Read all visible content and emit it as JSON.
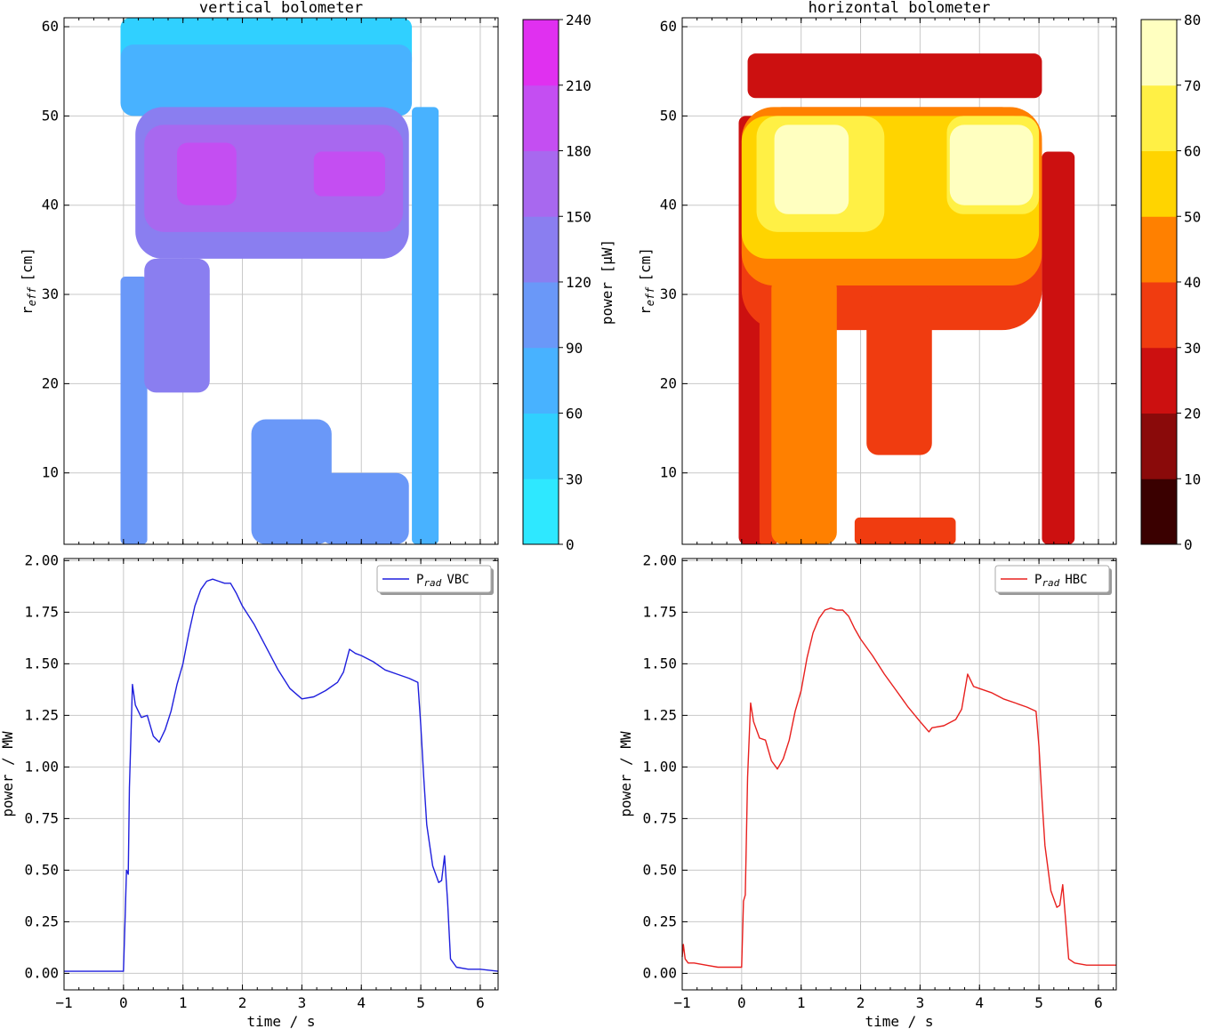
{
  "chart_data": [
    {
      "id": "tl",
      "type": "heatmap",
      "title": "vertical bolometer",
      "xlabel": "",
      "ylabel": "r_eff [cm]",
      "ylabel_main": "r",
      "ylabel_sub": "eff",
      "ylabel_unit": "[cm]",
      "xlim": [
        -1,
        6.3
      ],
      "ylim": [
        2,
        61
      ],
      "xticks": [
        -1,
        0,
        1,
        2,
        3,
        4,
        5,
        6
      ],
      "yticks": [
        10,
        20,
        30,
        40,
        50,
        60
      ],
      "grid": true,
      "colorbar": {
        "label": "power [µW]",
        "levels": [
          0,
          30,
          60,
          90,
          120,
          150,
          180,
          210,
          240
        ],
        "colors": [
          "#2ee8ff",
          "#30d0ff",
          "#48b2ff",
          "#6a98f8",
          "#8a7ef0",
          "#a868ef",
          "#c44ef2",
          "#e030f0"
        ]
      },
      "regions": [
        {
          "level": 30,
          "t0": -0.05,
          "t1": 4.85,
          "r0": 55,
          "r1": 61
        },
        {
          "level": 60,
          "t0": -0.05,
          "t1": 4.85,
          "r0": 50,
          "r1": 58
        },
        {
          "level": 60,
          "t0": 4.85,
          "t1": 5.3,
          "r0": 2,
          "r1": 51
        },
        {
          "level": 90,
          "t0": -0.05,
          "t1": 0.4,
          "r0": 2,
          "r1": 32
        },
        {
          "level": 90,
          "t0": 2.15,
          "t1": 3.5,
          "r0": 2,
          "r1": 16
        },
        {
          "level": 90,
          "t0": 3.3,
          "t1": 4.8,
          "r0": 2,
          "r1": 10
        },
        {
          "level": 120,
          "t0": 0.2,
          "t1": 4.8,
          "r0": 34,
          "r1": 51
        },
        {
          "level": 120,
          "t0": 0.35,
          "t1": 1.45,
          "r0": 19,
          "r1": 34
        },
        {
          "level": 150,
          "t0": 0.35,
          "t1": 4.7,
          "r0": 37,
          "r1": 49
        },
        {
          "level": 180,
          "t0": 0.9,
          "t1": 1.9,
          "r0": 40,
          "r1": 47
        },
        {
          "level": 180,
          "t0": 3.2,
          "t1": 4.4,
          "r0": 41,
          "r1": 46
        }
      ]
    },
    {
      "id": "tr",
      "type": "heatmap",
      "title": "horizontal bolometer",
      "xlabel": "",
      "ylabel": "r_eff [cm]",
      "ylabel_main": "r",
      "ylabel_sub": "eff",
      "ylabel_unit": "[cm]",
      "xlim": [
        -1,
        6.3
      ],
      "ylim": [
        2,
        61
      ],
      "xticks": [
        -1,
        0,
        1,
        2,
        3,
        4,
        5,
        6
      ],
      "yticks": [
        10,
        20,
        30,
        40,
        50,
        60
      ],
      "grid": true,
      "colorbar": {
        "label": "power [µW]",
        "levels": [
          0,
          10,
          20,
          30,
          40,
          50,
          60,
          70,
          80
        ],
        "colors": [
          "#3a0000",
          "#8a0a0a",
          "#cc1010",
          "#f03c10",
          "#ff8000",
          "#ffd400",
          "#fff045",
          "#ffffc0"
        ]
      },
      "regions": [
        {
          "level": 20,
          "t0": 0.1,
          "t1": 5.05,
          "r0": 52,
          "r1": 57
        },
        {
          "level": 20,
          "t0": -0.05,
          "t1": 0.6,
          "r0": 2,
          "r1": 50
        },
        {
          "level": 20,
          "t0": 5.05,
          "t1": 5.6,
          "r0": 2,
          "r1": 46
        },
        {
          "level": 30,
          "t0": 0.0,
          "t1": 5.05,
          "r0": 26,
          "r1": 51
        },
        {
          "level": 30,
          "t0": 0.3,
          "t1": 0.6,
          "r0": 2,
          "r1": 33
        },
        {
          "level": 30,
          "t0": 2.1,
          "t1": 3.2,
          "r0": 12,
          "r1": 30
        },
        {
          "level": 30,
          "t0": 1.9,
          "t1": 3.6,
          "r0": 2,
          "r1": 5
        },
        {
          "level": 40,
          "t0": 0.0,
          "t1": 5.05,
          "r0": 31,
          "r1": 51
        },
        {
          "level": 40,
          "t0": 0.5,
          "t1": 1.6,
          "r0": 2,
          "r1": 32
        },
        {
          "level": 50,
          "t0": 0.0,
          "t1": 5.0,
          "r0": 34,
          "r1": 50
        },
        {
          "level": 60,
          "t0": 0.25,
          "t1": 2.4,
          "r0": 37,
          "r1": 50
        },
        {
          "level": 60,
          "t0": 3.45,
          "t1": 5.0,
          "r0": 39,
          "r1": 50
        },
        {
          "level": 70,
          "t0": 0.55,
          "t1": 1.8,
          "r0": 39,
          "r1": 49
        },
        {
          "level": 70,
          "t0": 3.5,
          "t1": 4.9,
          "r0": 40,
          "r1": 49
        }
      ]
    },
    {
      "id": "bl",
      "type": "line",
      "title": "",
      "xlabel": "time / s",
      "ylabel": "power / MW",
      "xlim": [
        -1,
        6.3
      ],
      "ylim": [
        -0.08,
        2.01
      ],
      "xticks": [
        -1,
        0,
        1,
        2,
        3,
        4,
        5,
        6
      ],
      "yticks": [
        0.0,
        0.25,
        0.5,
        0.75,
        1.0,
        1.25,
        1.5,
        1.75,
        2.0
      ],
      "ytick_labels": [
        "0.00",
        "0.25",
        "0.50",
        "0.75",
        "1.00",
        "1.25",
        "1.50",
        "1.75",
        "2.00"
      ],
      "grid": true,
      "legend": "top-right",
      "series": [
        {
          "name": "P_rad VBC",
          "legend_main": "P",
          "legend_sub": "rad",
          "legend_rest": "VBC",
          "color": "#1f1fdd",
          "x": [
            -1,
            -0.5,
            0,
            0.03,
            0.05,
            0.08,
            0.1,
            0.15,
            0.2,
            0.3,
            0.4,
            0.5,
            0.6,
            0.7,
            0.8,
            0.9,
            1.0,
            1.1,
            1.2,
            1.3,
            1.4,
            1.5,
            1.6,
            1.7,
            1.8,
            1.9,
            2.0,
            2.2,
            2.4,
            2.6,
            2.8,
            3.0,
            3.2,
            3.4,
            3.6,
            3.7,
            3.8,
            3.9,
            4.0,
            4.2,
            4.4,
            4.6,
            4.8,
            4.95,
            5.0,
            5.05,
            5.1,
            5.2,
            5.3,
            5.35,
            5.4,
            5.45,
            5.5,
            5.6,
            5.8,
            6.0,
            6.3
          ],
          "y": [
            0.01,
            0.01,
            0.01,
            0.3,
            0.5,
            0.48,
            0.9,
            1.4,
            1.3,
            1.24,
            1.25,
            1.15,
            1.12,
            1.18,
            1.27,
            1.4,
            1.5,
            1.65,
            1.78,
            1.86,
            1.9,
            1.91,
            1.9,
            1.89,
            1.89,
            1.84,
            1.78,
            1.69,
            1.58,
            1.47,
            1.38,
            1.33,
            1.34,
            1.37,
            1.41,
            1.46,
            1.57,
            1.55,
            1.54,
            1.51,
            1.47,
            1.45,
            1.43,
            1.41,
            1.2,
            0.95,
            0.72,
            0.52,
            0.44,
            0.45,
            0.57,
            0.35,
            0.07,
            0.03,
            0.02,
            0.02,
            0.01
          ]
        }
      ]
    },
    {
      "id": "br",
      "type": "line",
      "title": "",
      "xlabel": "time / s",
      "ylabel": "power / MW",
      "xlim": [
        -1,
        6.3
      ],
      "ylim": [
        -0.08,
        2.01
      ],
      "xticks": [
        -1,
        0,
        1,
        2,
        3,
        4,
        5,
        6
      ],
      "yticks": [
        0.0,
        0.25,
        0.5,
        0.75,
        1.0,
        1.25,
        1.5,
        1.75,
        2.0
      ],
      "ytick_labels": [
        "0.00",
        "0.25",
        "0.50",
        "0.75",
        "1.00",
        "1.25",
        "1.50",
        "1.75",
        "2.00"
      ],
      "grid": true,
      "legend": "top-right",
      "series": [
        {
          "name": "P_rad HBC",
          "legend_main": "P",
          "legend_sub": "rad",
          "legend_rest": "HBC",
          "color": "#e8201e",
          "x": [
            -1,
            -0.98,
            -0.95,
            -0.9,
            -0.8,
            -0.6,
            -0.4,
            -0.2,
            -0.05,
            0.0,
            0.03,
            0.06,
            0.1,
            0.15,
            0.2,
            0.3,
            0.4,
            0.5,
            0.6,
            0.7,
            0.8,
            0.9,
            1.0,
            1.1,
            1.2,
            1.3,
            1.4,
            1.5,
            1.6,
            1.7,
            1.8,
            1.9,
            2.0,
            2.2,
            2.4,
            2.6,
            2.8,
            3.0,
            3.15,
            3.2,
            3.4,
            3.6,
            3.7,
            3.8,
            3.9,
            4.0,
            4.2,
            4.4,
            4.6,
            4.8,
            4.95,
            5.0,
            5.05,
            5.1,
            5.2,
            5.3,
            5.35,
            5.4,
            5.45,
            5.5,
            5.6,
            5.8,
            6.0,
            6.3
          ],
          "y": [
            0.08,
            0.14,
            0.07,
            0.05,
            0.05,
            0.04,
            0.03,
            0.03,
            0.03,
            0.03,
            0.35,
            0.38,
            0.95,
            1.31,
            1.22,
            1.14,
            1.13,
            1.03,
            0.99,
            1.04,
            1.13,
            1.27,
            1.37,
            1.53,
            1.65,
            1.72,
            1.76,
            1.77,
            1.76,
            1.76,
            1.73,
            1.67,
            1.62,
            1.54,
            1.45,
            1.37,
            1.29,
            1.22,
            1.17,
            1.19,
            1.2,
            1.23,
            1.28,
            1.45,
            1.39,
            1.38,
            1.36,
            1.33,
            1.31,
            1.29,
            1.27,
            1.1,
            0.85,
            0.62,
            0.4,
            0.32,
            0.33,
            0.43,
            0.25,
            0.07,
            0.05,
            0.04,
            0.04,
            0.04
          ]
        }
      ]
    }
  ]
}
